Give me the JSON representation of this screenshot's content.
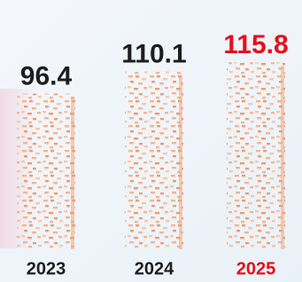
{
  "chart_data": {
    "type": "bar",
    "categories": [
      "2023",
      "2024",
      "2025"
    ],
    "values": [
      96.4,
      110.1,
      115.8
    ],
    "color": "#f4a67a",
    "label_colors": [
      "#1e1e1e",
      "#1e1e1e",
      "#e3111b"
    ]
  }
}
